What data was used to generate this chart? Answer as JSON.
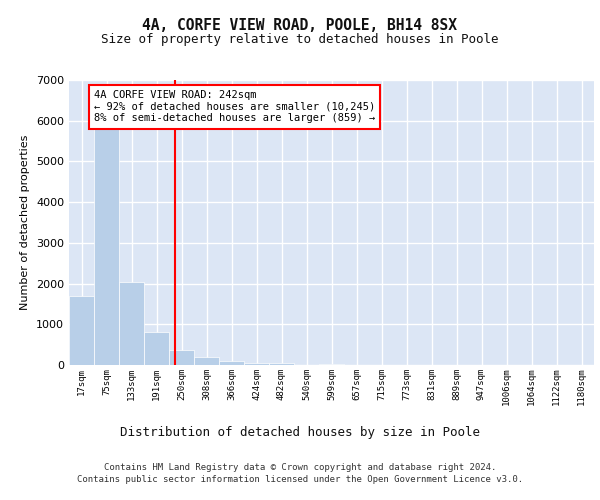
{
  "title1": "4A, CORFE VIEW ROAD, POOLE, BH14 8SX",
  "title2": "Size of property relative to detached houses in Poole",
  "xlabel": "Distribution of detached houses by size in Poole",
  "ylabel": "Number of detached properties",
  "bar_color": "#b8cfe8",
  "bar_edge_color": "#ffffff",
  "background_color": "#dce6f5",
  "grid_color": "#ffffff",
  "annotation_text": "4A CORFE VIEW ROAD: 242sqm\n← 92% of detached houses are smaller (10,245)\n8% of semi-detached houses are larger (859) →",
  "red_line_bin": 4,
  "footnote1": "Contains HM Land Registry data © Crown copyright and database right 2024.",
  "footnote2": "Contains public sector information licensed under the Open Government Licence v3.0.",
  "categories": [
    "17sqm",
    "75sqm",
    "133sqm",
    "191sqm",
    "250sqm",
    "308sqm",
    "366sqm",
    "424sqm",
    "482sqm",
    "540sqm",
    "599sqm",
    "657sqm",
    "715sqm",
    "773sqm",
    "831sqm",
    "889sqm",
    "947sqm",
    "1006sqm",
    "1064sqm",
    "1122sqm",
    "1180sqm"
  ],
  "values": [
    1700,
    5800,
    2050,
    820,
    380,
    200,
    90,
    60,
    40,
    0,
    30,
    0,
    0,
    0,
    0,
    0,
    0,
    0,
    0,
    0,
    0
  ],
  "ylim": [
    0,
    7000
  ],
  "yticks": [
    0,
    1000,
    2000,
    3000,
    4000,
    5000,
    6000,
    7000
  ]
}
